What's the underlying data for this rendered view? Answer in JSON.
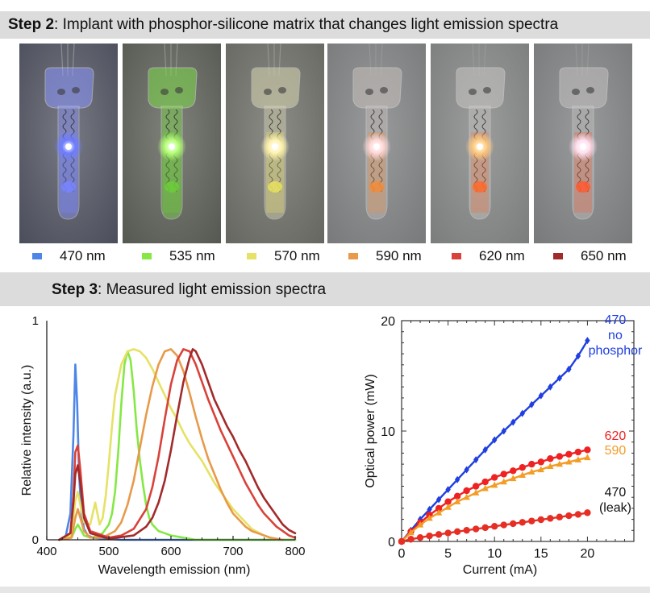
{
  "step2": {
    "label": "Step 2",
    "text": ": Implant with phosphor-silicone matrix that changes light emission spectra"
  },
  "step3": {
    "label": "Step 3",
    "text": ": Measured light emission spectra"
  },
  "photos": [
    {
      "bg": "#4a4d5a",
      "glow": "#6f7dff",
      "tube": "#8d97ff",
      "tint": "#7884ff"
    },
    {
      "bg": "#555850",
      "glow": "#b8ff7a",
      "tube": "#7edc4a",
      "tint": "#6ccd3a"
    },
    {
      "bg": "#666660",
      "glow": "#fff3b0",
      "tube": "#d8d6b0",
      "tint": "#e8e060"
    },
    {
      "bg": "#77797a",
      "glow": "#ffd9d9",
      "tube": "#c8c0bc",
      "tint": "#f38c3a"
    },
    {
      "bg": "#7b7d7c",
      "glow": "#ffcc80",
      "tube": "#c8c6c4",
      "tint": "#ff6a2a"
    },
    {
      "bg": "#77797a",
      "glow": "#ffe0f0",
      "tube": "#c4c0c0",
      "tint": "#ff5a30"
    }
  ],
  "legend": [
    {
      "label": "470 nm",
      "color": "#4e86e8"
    },
    {
      "label": "535 nm",
      "color": "#86e844"
    },
    {
      "label": "570 nm",
      "color": "#e6e265"
    },
    {
      "label": "590 nm",
      "color": "#e89a4a"
    },
    {
      "label": "620 nm",
      "color": "#d9423a"
    },
    {
      "label": "650 nm",
      "color": "#a32a2a"
    }
  ],
  "chart_data": [
    {
      "type": "line",
      "xlabel": "Wavelength emission (nm)",
      "ylabel": "Relative intensity (a.u.)",
      "xlim": [
        400,
        800
      ],
      "ylim": [
        0,
        1
      ],
      "xticks": [
        "400",
        "500",
        "600",
        "700",
        "800"
      ],
      "yticks": [
        "0",
        "1"
      ],
      "grid": false,
      "series": [
        {
          "color": "#4e86e8",
          "x": [
            420,
            430,
            438,
            443,
            446,
            449,
            452,
            456,
            460,
            466,
            475,
            490,
            520,
            800
          ],
          "y": [
            0,
            0.01,
            0.12,
            0.48,
            0.8,
            0.62,
            0.3,
            0.12,
            0.05,
            0.02,
            0.01,
            0.005,
            0,
            0
          ]
        },
        {
          "color": "#86e844",
          "x": [
            420,
            440,
            446,
            450,
            454,
            460,
            470,
            480,
            490,
            500,
            505,
            510,
            515,
            520,
            525,
            530,
            535,
            540,
            545,
            550,
            555,
            560,
            565,
            570,
            580,
            590,
            600,
            620,
            640,
            800
          ],
          "y": [
            0,
            0.01,
            0.05,
            0.07,
            0.05,
            0.02,
            0.01,
            0.015,
            0.03,
            0.07,
            0.12,
            0.22,
            0.4,
            0.62,
            0.8,
            0.86,
            0.82,
            0.68,
            0.5,
            0.36,
            0.25,
            0.16,
            0.1,
            0.07,
            0.04,
            0.03,
            0.02,
            0.01,
            0,
            0
          ]
        },
        {
          "color": "#e6e265",
          "x": [
            420,
            440,
            446,
            450,
            454,
            460,
            470,
            478,
            485,
            490,
            495,
            500,
            505,
            510,
            520,
            530,
            540,
            550,
            560,
            570,
            580,
            590,
            600,
            610,
            620,
            630,
            640,
            650,
            660,
            670,
            680,
            690,
            700,
            710,
            720,
            730,
            740,
            750,
            760,
            770
          ],
          "y": [
            0,
            0.02,
            0.18,
            0.22,
            0.16,
            0.08,
            0.07,
            0.17,
            0.07,
            0.1,
            0.2,
            0.35,
            0.52,
            0.66,
            0.8,
            0.86,
            0.87,
            0.86,
            0.83,
            0.78,
            0.72,
            0.66,
            0.6,
            0.55,
            0.49,
            0.44,
            0.4,
            0.36,
            0.31,
            0.26,
            0.22,
            0.18,
            0.14,
            0.11,
            0.08,
            0.05,
            0.035,
            0.02,
            0.01,
            0
          ]
        },
        {
          "color": "#e89a4a",
          "x": [
            420,
            440,
            446,
            450,
            454,
            460,
            470,
            490,
            510,
            520,
            530,
            540,
            550,
            560,
            570,
            580,
            590,
            600,
            610,
            620,
            630,
            640,
            650,
            660,
            670,
            680,
            690,
            700,
            710,
            720,
            730,
            740,
            750,
            760,
            770,
            780
          ],
          "y": [
            0,
            0.01,
            0.1,
            0.14,
            0.1,
            0.04,
            0.01,
            0.01,
            0.04,
            0.08,
            0.16,
            0.27,
            0.42,
            0.57,
            0.7,
            0.8,
            0.86,
            0.87,
            0.84,
            0.77,
            0.67,
            0.56,
            0.46,
            0.37,
            0.3,
            0.23,
            0.17,
            0.12,
            0.09,
            0.06,
            0.04,
            0.03,
            0.02,
            0.01,
            0.005,
            0
          ]
        },
        {
          "color": "#d9423a",
          "x": [
            420,
            438,
            443,
            446,
            450,
            454,
            460,
            470,
            500,
            520,
            540,
            560,
            570,
            580,
            590,
            600,
            610,
            620,
            630,
            640,
            650,
            660,
            670,
            680,
            690,
            700,
            710,
            720,
            730,
            740,
            750,
            760,
            770,
            780,
            790,
            800
          ],
          "y": [
            0,
            0.03,
            0.2,
            0.4,
            0.43,
            0.32,
            0.12,
            0.04,
            0.01,
            0.02,
            0.05,
            0.14,
            0.24,
            0.38,
            0.55,
            0.71,
            0.82,
            0.87,
            0.86,
            0.8,
            0.72,
            0.64,
            0.57,
            0.5,
            0.44,
            0.38,
            0.32,
            0.26,
            0.21,
            0.16,
            0.12,
            0.09,
            0.06,
            0.04,
            0.02,
            0.01
          ]
        },
        {
          "color": "#a32a2a",
          "x": [
            420,
            438,
            443,
            446,
            450,
            454,
            460,
            470,
            500,
            540,
            560,
            570,
            580,
            590,
            600,
            610,
            620,
            630,
            635,
            640,
            650,
            660,
            670,
            680,
            690,
            700,
            710,
            720,
            730,
            740,
            750,
            760,
            770,
            780,
            790,
            800
          ],
          "y": [
            0,
            0.03,
            0.17,
            0.3,
            0.34,
            0.26,
            0.1,
            0.03,
            0.005,
            0.02,
            0.06,
            0.1,
            0.17,
            0.27,
            0.41,
            0.57,
            0.72,
            0.83,
            0.87,
            0.86,
            0.8,
            0.72,
            0.64,
            0.58,
            0.52,
            0.47,
            0.41,
            0.36,
            0.3,
            0.24,
            0.19,
            0.15,
            0.11,
            0.07,
            0.045,
            0.03
          ]
        }
      ]
    },
    {
      "type": "line",
      "xlabel": "Current (mA)",
      "ylabel": "Optical power (mW)",
      "xlim": [
        0,
        25
      ],
      "ylim": [
        0,
        20
      ],
      "xticks": [
        "0",
        "5",
        "10",
        "15",
        "20"
      ],
      "yticks": [
        "0",
        "10",
        "20"
      ],
      "grid": false,
      "series": [
        {
          "label": "470\nno\nphosphor",
          "color": "#1f3fe0",
          "marker": "diamond",
          "x": [
            0,
            1,
            2,
            3,
            4,
            5,
            6,
            7,
            8,
            9,
            10,
            11,
            12,
            13,
            14,
            15,
            16,
            17,
            18,
            19,
            20
          ],
          "y": [
            0,
            1.0,
            2.0,
            2.9,
            3.8,
            4.7,
            5.6,
            6.5,
            7.4,
            8.3,
            9.2,
            10.0,
            10.8,
            11.6,
            12.4,
            13.2,
            14.0,
            14.8,
            15.6,
            16.8,
            18.2
          ]
        },
        {
          "label": "620",
          "color": "#ee2222",
          "marker": "circle",
          "x": [
            0,
            1,
            2,
            3,
            4,
            5,
            6,
            7,
            8,
            9,
            10,
            11,
            12,
            13,
            14,
            15,
            16,
            17,
            18,
            19,
            20
          ],
          "y": [
            0,
            0.9,
            1.7,
            2.4,
            3.0,
            3.6,
            4.1,
            4.6,
            5.0,
            5.4,
            5.8,
            6.1,
            6.4,
            6.7,
            7.0,
            7.2,
            7.5,
            7.7,
            7.9,
            8.1,
            8.3
          ]
        },
        {
          "label": "590",
          "color": "#f39c26",
          "marker": "triangle",
          "x": [
            0,
            1,
            2,
            3,
            4,
            5,
            6,
            7,
            8,
            9,
            10,
            11,
            12,
            13,
            14,
            15,
            16,
            17,
            18,
            19,
            20
          ],
          "y": [
            0,
            0.8,
            1.5,
            2.1,
            2.6,
            3.1,
            3.6,
            4.0,
            4.4,
            4.8,
            5.1,
            5.4,
            5.7,
            6.0,
            6.3,
            6.5,
            6.8,
            7.0,
            7.2,
            7.4,
            7.6
          ]
        },
        {
          "label": "470\n(leak)",
          "color": "#e62e24",
          "marker": "circle",
          "x": [
            0,
            1,
            2,
            3,
            4,
            5,
            6,
            7,
            8,
            9,
            10,
            11,
            12,
            13,
            14,
            15,
            16,
            17,
            18,
            19,
            20
          ],
          "y": [
            0,
            0.2,
            0.35,
            0.5,
            0.63,
            0.76,
            0.89,
            1.01,
            1.13,
            1.25,
            1.37,
            1.49,
            1.61,
            1.73,
            1.85,
            1.97,
            2.09,
            2.21,
            2.33,
            2.45,
            2.6
          ]
        }
      ]
    }
  ]
}
